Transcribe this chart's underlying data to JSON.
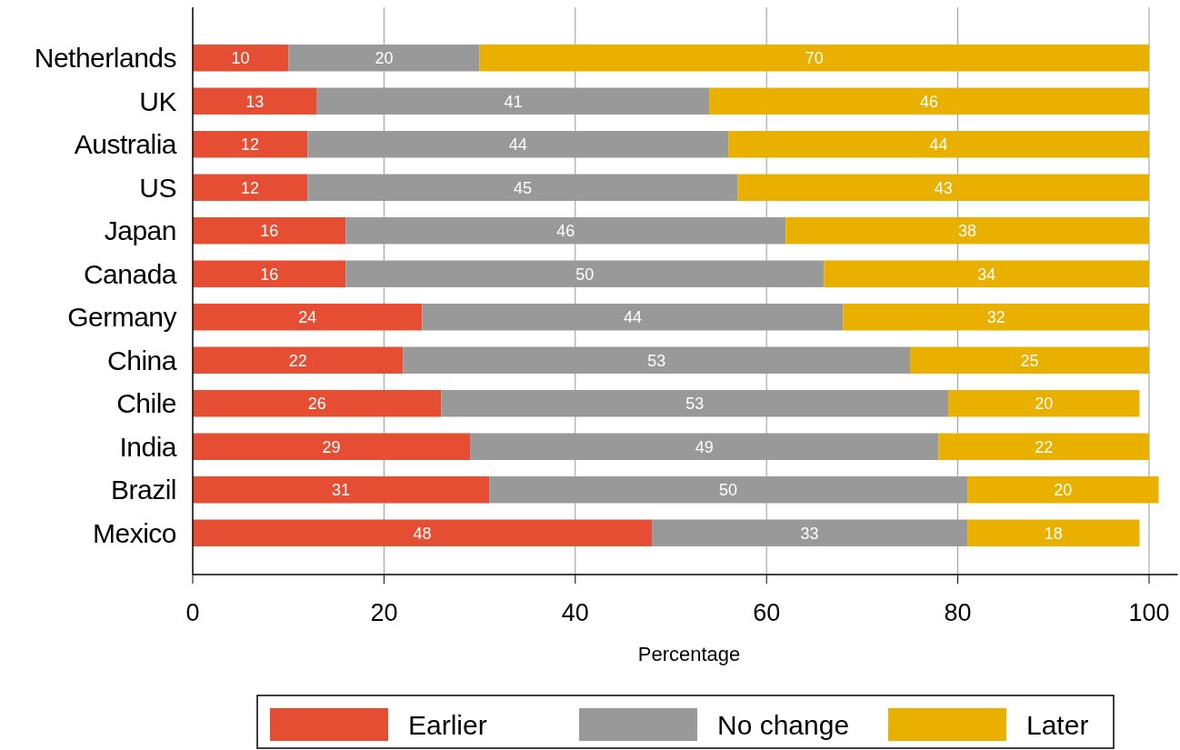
{
  "chart_data": {
    "type": "bar",
    "orientation": "horizontal",
    "stacked": true,
    "xlabel": "Percentage",
    "categories": [
      "Netherlands",
      "UK",
      "Australia",
      "US",
      "Japan",
      "Canada",
      "Germany",
      "China",
      "Chile",
      "India",
      "Brazil",
      "Mexico"
    ],
    "series": [
      {
        "name": "Earlier",
        "color": "#e64e34",
        "values": [
          10,
          13,
          12,
          12,
          16,
          16,
          24,
          22,
          26,
          29,
          31,
          48
        ]
      },
      {
        "name": "No change",
        "color": "#999999",
        "values": [
          20,
          41,
          44,
          45,
          46,
          50,
          44,
          53,
          53,
          49,
          50,
          33
        ]
      },
      {
        "name": "Later",
        "color": "#eab000",
        "values": [
          70,
          46,
          44,
          43,
          38,
          34,
          32,
          25,
          20,
          22,
          20,
          18
        ]
      }
    ],
    "xlim": [
      0,
      103
    ],
    "xticks": [
      0,
      20,
      40,
      60,
      80,
      100
    ],
    "grid": "x",
    "legend": "bottom",
    "data_labels": true
  }
}
